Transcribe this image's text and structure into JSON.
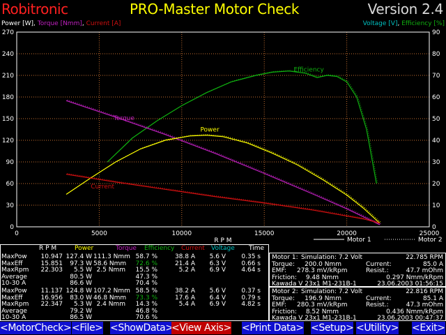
{
  "app": {
    "brand": "Robitronic",
    "title": "PRO-Master Motor Check",
    "version": "Version 2.4"
  },
  "colors": {
    "power": "#ffff00",
    "torque": "#c020c0",
    "current": "#d01010",
    "efficiency": "#10b010",
    "voltage": "#00c0c0",
    "grid": "#c87030",
    "menu_bg": "#1010d0",
    "menu_active_bg": "#c00000"
  },
  "chart_data": {
    "type": "line",
    "title": "",
    "left_axis_label_parts": [
      {
        "text": "Power [W]",
        "color": "#ffffff"
      },
      {
        "text": ", ",
        "color": "#ffffff"
      },
      {
        "text": "Torque [Nmm]",
        "color": "#c020c0"
      },
      {
        "text": ", ",
        "color": "#ffffff"
      },
      {
        "text": "Current [A]",
        "color": "#d01010"
      }
    ],
    "right_axis_label_parts": [
      {
        "text": "Voltage [V]",
        "color": "#00c0c0"
      },
      {
        "text": ", ",
        "color": "#ffffff"
      },
      {
        "text": "Efficiency [%]",
        "color": "#10b010"
      }
    ],
    "xlabel": "R P M",
    "xlim": [
      0,
      25000
    ],
    "ylim_left": [
      0,
      270
    ],
    "ylim_right": [
      0,
      90
    ],
    "x_ticks": [
      "0",
      "5000",
      "10000",
      "15000",
      "20000",
      "25000"
    ],
    "y_left_ticks": [
      "0",
      "30",
      "60",
      "90",
      "120",
      "150",
      "180",
      "210",
      "240",
      "270"
    ],
    "y_right_ticks": [
      "0",
      "10",
      "20",
      "30",
      "40",
      "50",
      "60",
      "70",
      "80",
      "90"
    ],
    "grid": true,
    "legend": [
      {
        "name": "Motor 1",
        "style": "solid"
      },
      {
        "name": "Motor 2",
        "style": "dotted"
      }
    ],
    "series": [
      {
        "name": "Efficiency",
        "axis": "right",
        "color": "#10b010",
        "x": [
          5500,
          7000,
          8500,
          10000,
          11500,
          13000,
          14500,
          15500,
          16500,
          17500,
          18200,
          18800,
          19400,
          20000,
          20600,
          21200,
          21800
        ],
        "y": [
          30,
          41,
          49,
          56,
          62,
          67,
          70,
          71.5,
          72,
          71,
          69,
          70,
          69.5,
          67,
          60,
          45,
          20
        ]
      },
      {
        "name": "Torque",
        "axis": "left",
        "color": "#c020c0",
        "x": [
          3000,
          6000,
          9000,
          12000,
          15000,
          18000,
          20000,
          22000
        ],
        "y": [
          175,
          152,
          128,
          102,
          74,
          45,
          25,
          3
        ]
      },
      {
        "name": "Power",
        "axis": "left",
        "color": "#ffff00",
        "x": [
          3000,
          4500,
          6000,
          7500,
          9000,
          10500,
          11500,
          12500,
          14000,
          15500,
          17000,
          18500,
          20000,
          21000,
          22000
        ],
        "y": [
          45,
          68,
          90,
          108,
          120,
          126,
          127,
          125,
          116,
          102,
          86,
          66,
          44,
          26,
          5
        ]
      },
      {
        "name": "Current",
        "axis": "left",
        "color": "#d01010",
        "x": [
          3000,
          6000,
          9000,
          12000,
          15000,
          18000,
          21000,
          22000
        ],
        "y": [
          73,
          62,
          52,
          42,
          33,
          23,
          11,
          5
        ]
      }
    ]
  },
  "table": {
    "headers": [
      {
        "text": "R P M",
        "color": "#ffffff"
      },
      {
        "text": "Power",
        "color": "#ffff00"
      },
      {
        "text": "Torque",
        "color": "#c020c0"
      },
      {
        "text": "Efficiency",
        "color": "#10b010"
      },
      {
        "text": "Current",
        "color": "#d01010"
      },
      {
        "text": "Voltage",
        "color": "#00c0c0"
      },
      {
        "text": "Time",
        "color": "#ffffff"
      }
    ],
    "motor1_rows": [
      [
        "MaxPow",
        "10.947",
        "127.4 W",
        "111.3 Nmm",
        "58.7 %",
        "38.8 A",
        "5.6 V",
        "0.35 s"
      ],
      [
        "MaxEff",
        "15.851",
        "97.3 W",
        "58.6 Nmm",
        "72.6 %",
        "21.4 A",
        "6.3 V",
        "0.66 s"
      ],
      [
        "MaxRpm",
        "22.303",
        "5.5 W",
        "2.5 Nmm",
        "15.5 %",
        "5.2 A",
        "6.9 V",
        "4.64 s"
      ],
      [
        "Average",
        "",
        "80.5 W",
        "",
        "47.3 %",
        "",
        "",
        ""
      ],
      [
        "10-30 A",
        "",
        "86.6 W",
        "",
        "70.4 %",
        "",
        "",
        ""
      ]
    ],
    "motor2_rows": [
      [
        "MaxPow",
        "11.137",
        "124.8 W",
        "107.2 Nmm",
        "58.5 %",
        "38.2 A",
        "5.6 V",
        "0.37 s"
      ],
      [
        "MaxEff",
        "16.956",
        "83.0 W",
        "46.8 Nmm",
        "73.3 %",
        "17.6 A",
        "6.4 V",
        "0.79 s"
      ],
      [
        "MaxRpm",
        "22.347",
        "5.3 W",
        "2.4 Nmm",
        "14.3 %",
        "5.4 A",
        "6.9 V",
        "4.82 s"
      ],
      [
        "Average",
        "",
        "79.2 W",
        "",
        "46.8 %",
        "",
        "",
        ""
      ],
      [
        "10-30 A",
        "",
        "86.5 W",
        "",
        "70.6 %",
        "",
        "",
        ""
      ]
    ]
  },
  "motor1": {
    "name": "Motor 1:",
    "sim": "Simulation: 7.2 Volt",
    "rpm": "22.785 RPM",
    "torque_label": "Torque:",
    "torque": "200.0 Nmm",
    "current_label": "Current:",
    "current": "85.0 A",
    "emf_label": "EMF:",
    "emf": "278.3 mV/kRpm",
    "resist_label": "Resist.:",
    "resist": "47.7 mOhm",
    "friction_label": "Friction:",
    "friction": "9.48 Nmm",
    "friction2": "0.297 Nmm/kRpm",
    "desc": "Kawada V 23x1 M1-231B-1",
    "date": "23.06.2003 01:56:15"
  },
  "motor2": {
    "name": "Motor 2:",
    "sim": "Simulation: 7.2 Volt",
    "rpm": "22.816 RPM",
    "torque_label": "Torque:",
    "torque": "196.9 Nmm",
    "current_label": "Current:",
    "current": "85.1 A",
    "emf_label": "EMF:",
    "emf": "280.3 mV/kRpm",
    "resist_label": "Resist.:",
    "resist": "47.3 mOhm",
    "friction_label": "Friction:",
    "friction": "8.52 Nmm",
    "friction2": "0.436 Nmm/kRpm",
    "desc": "Kawada V 23x1 M1-231B-1",
    "date": "23.06.2003 00:47:37"
  },
  "menu": [
    {
      "label": "<MotorCheck>",
      "active": false
    },
    {
      "label": "<File>",
      "active": false
    },
    {
      "label": "<ShowData>",
      "active": false
    },
    {
      "label": "<View Axis>",
      "active": true
    },
    {
      "label": "<Print Data>",
      "active": false
    },
    {
      "label": "<Setup>",
      "active": false
    },
    {
      "label": "<Utility>",
      "active": false
    },
    {
      "label": "<Exit>",
      "active": false
    }
  ]
}
